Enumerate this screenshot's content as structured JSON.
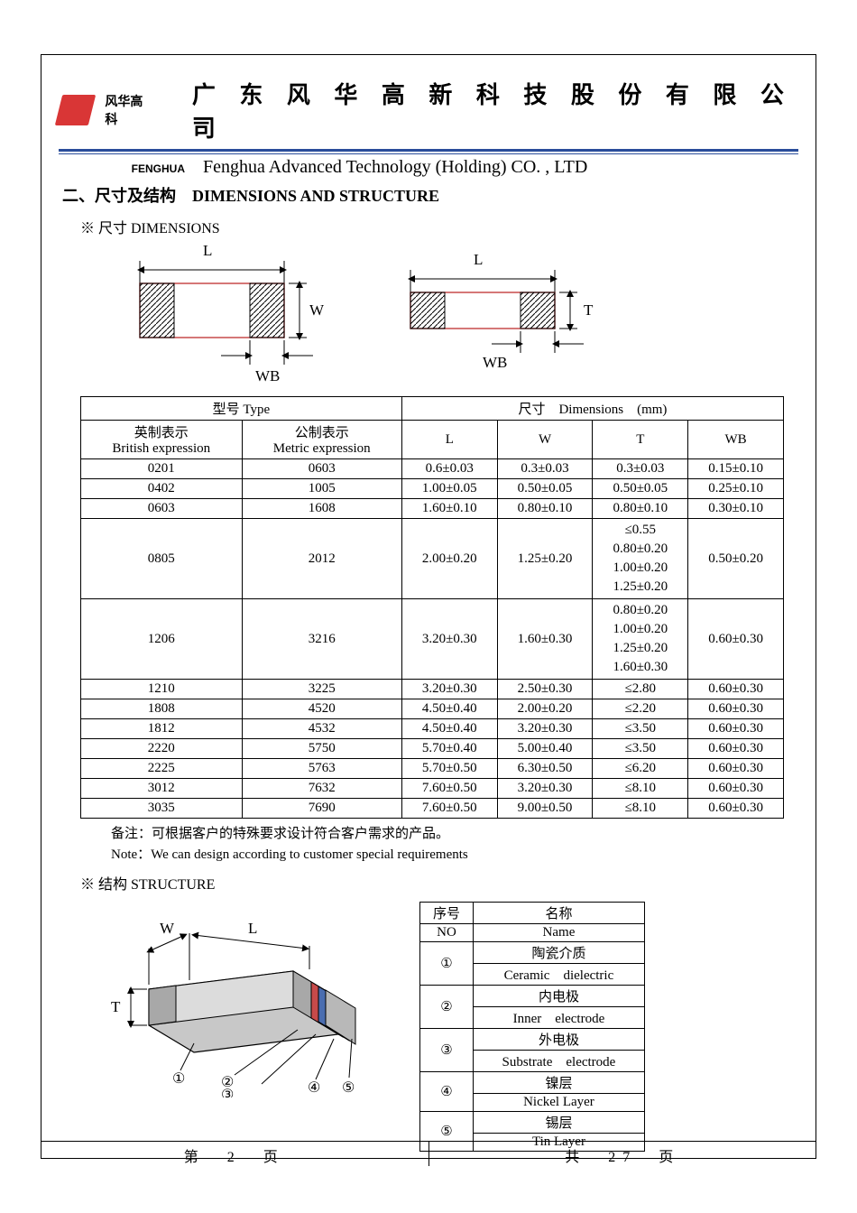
{
  "header": {
    "brand_cn": "风华高科",
    "brand_en": "FENGHUA",
    "company_cn": "广 东 风 华 高 新 科 技 股 份 有 限 公 司",
    "company_en": "Fenghua Advanced Technology (Holding) CO. , LTD"
  },
  "section": {
    "title": "二、尺寸及结构　DIMENSIONS AND STRUCTURE",
    "dims_title": "※ 尺寸 DIMENSIONS",
    "struct_title": "※ 结构 STRUCTURE"
  },
  "diagram_labels": {
    "L": "L",
    "W": "W",
    "T": "T",
    "WB": "WB"
  },
  "dims_table": {
    "header_type": "型号 Type",
    "header_dims": "尺寸　Dimensions　(mm)",
    "col_brit_cn": "英制表示",
    "col_brit_en": "British expression",
    "col_met_cn": "公制表示",
    "col_met_en": "Metric expression",
    "col_L": "L",
    "col_W": "W",
    "col_T": "T",
    "col_WB": "WB",
    "rows": [
      {
        "b": "0201",
        "m": "0603",
        "L": "0.6±0.03",
        "W": "0.3±0.03",
        "T": "0.3±0.03",
        "WB": "0.15±0.10"
      },
      {
        "b": "0402",
        "m": "1005",
        "L": "1.00±0.05",
        "W": "0.50±0.05",
        "T": "0.50±0.05",
        "WB": "0.25±0.10"
      },
      {
        "b": "0603",
        "m": "1608",
        "L": "1.60±0.10",
        "W": "0.80±0.10",
        "T": "0.80±0.10",
        "WB": "0.30±0.10"
      },
      {
        "b": "0805",
        "m": "2012",
        "L": "2.00±0.20",
        "W": "1.25±0.20",
        "T": "≤0.55\n0.80±0.20\n1.00±0.20\n1.25±0.20",
        "WB": "0.50±0.20"
      },
      {
        "b": "1206",
        "m": "3216",
        "L": "3.20±0.30",
        "W": "1.60±0.30",
        "T": "0.80±0.20\n1.00±0.20\n1.25±0.20\n1.60±0.30",
        "WB": "0.60±0.30"
      },
      {
        "b": "1210",
        "m": "3225",
        "L": "3.20±0.30",
        "W": "2.50±0.30",
        "T": "≤2.80",
        "WB": "0.60±0.30"
      },
      {
        "b": "1808",
        "m": "4520",
        "L": "4.50±0.40",
        "W": "2.00±0.20",
        "T": "≤2.20",
        "WB": "0.60±0.30"
      },
      {
        "b": "1812",
        "m": "4532",
        "L": "4.50±0.40",
        "W": "3.20±0.30",
        "T": "≤3.50",
        "WB": "0.60±0.30"
      },
      {
        "b": "2220",
        "m": "5750",
        "L": "5.70±0.40",
        "W": "5.00±0.40",
        "T": "≤3.50",
        "WB": "0.60±0.30"
      },
      {
        "b": "2225",
        "m": "5763",
        "L": "5.70±0.50",
        "W": "6.30±0.50",
        "T": "≤6.20",
        "WB": "0.60±0.30"
      },
      {
        "b": "3012",
        "m": "7632",
        "L": "7.60±0.50",
        "W": "3.20±0.30",
        "T": "≤8.10",
        "WB": "0.60±0.30"
      },
      {
        "b": "3035",
        "m": "7690",
        "L": "7.60±0.50",
        "W": "9.00±0.50",
        "T": "≤8.10",
        "WB": "0.60±0.30"
      }
    ]
  },
  "notes": {
    "cn": "备注：可根据客户的特殊要求设计符合客户需求的产品。",
    "en": "Note：We can design according to customer special requirements"
  },
  "struct_table": {
    "hdr_no_cn": "序号",
    "hdr_no_en": "NO",
    "hdr_name_cn": "名称",
    "hdr_name_en": "Name",
    "rows": [
      {
        "no": "①",
        "cn": "陶瓷介质",
        "en": "Ceramic　dielectric"
      },
      {
        "no": "②",
        "cn": "内电极",
        "en": "Inner　electrode"
      },
      {
        "no": "③",
        "cn": "外电极",
        "en": "Substrate　electrode"
      },
      {
        "no": "④",
        "cn": "镍层",
        "en": "Nickel Layer"
      },
      {
        "no": "⑤",
        "cn": "锡层",
        "en": "Tin Layer"
      }
    ]
  },
  "struct_diag_nums": {
    "1": "①",
    "2": "②",
    "3": "③",
    "4": "④",
    "5": "⑤"
  },
  "footer": {
    "left": "第　2　页",
    "right": "共　27　页"
  },
  "colors": {
    "rule": "#2a4d9b",
    "logo": "#d93636",
    "term_red": "#c74a4a",
    "term_blue": "#4a6db0",
    "term_silver": "#a8a8a8",
    "body_gray": "#c8c8c8"
  }
}
